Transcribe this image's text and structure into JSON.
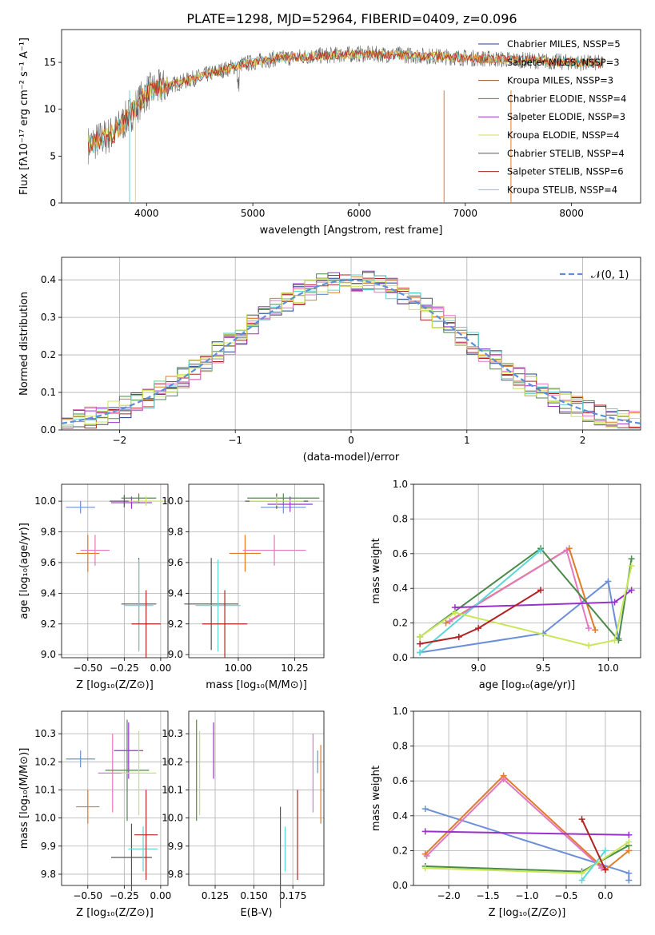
{
  "title": "PLATE=1298, MJD=52964, FIBERID=0409, z=0.096",
  "colors": [
    "#1f3f8f",
    "#e07b2a",
    "#a0522d",
    "#4a8a4a",
    "#9932cc",
    "#d4e157",
    "#555555",
    "#b22222",
    "#5dd6d6",
    "#6a8fd8",
    "#f08080",
    "#c8e65a",
    "#e377c2"
  ],
  "chart_data": [
    {
      "type": "line",
      "name": "spectrum",
      "xlabel": "wavelength [Angstrom, rest frame]",
      "ylabel": "Flux [fλ10⁻¹⁷ erg cm⁻² s⁻¹ A⁻¹]",
      "xlim": [
        3200,
        8650
      ],
      "ylim": [
        0,
        18.5
      ],
      "xticks": [
        "4000",
        "5000",
        "6000",
        "7000",
        "8000"
      ],
      "yticks": [
        "0",
        "5",
        "10",
        "15"
      ],
      "legend_placement": "top-right",
      "series": [
        {
          "name": "Chabrier MILES, N_SSP=5"
        },
        {
          "name": "Salpeter MILES, N_SSP=3"
        },
        {
          "name": "Kroupa MILES, N_SSP=3"
        },
        {
          "name": "Chabrier ELODIE, N_SSP=4"
        },
        {
          "name": "Salpeter ELODIE, N_SSP=3"
        },
        {
          "name": "Kroupa ELODIE, N_SSP=4"
        },
        {
          "name": "Chabrier STELIB, N_SSP=4"
        },
        {
          "name": "Salpeter STELIB, N_SSP=6"
        },
        {
          "name": "Kroupa STELIB, N_SSP=4"
        }
      ],
      "continuum": {
        "x": [
          3450,
          3700,
          3850,
          4000,
          4300,
          4600,
          4900,
          5200,
          5600,
          6000,
          6400,
          6800,
          7200,
          7600,
          8000,
          8300
        ],
        "y": [
          6.2,
          7.5,
          9.5,
          11.8,
          12.8,
          13.8,
          14.8,
          15.4,
          15.7,
          15.9,
          15.8,
          15.6,
          15.4,
          15.2,
          15.0,
          14.9
        ]
      }
    },
    {
      "type": "bar",
      "name": "residual-histogram",
      "xlabel": "(data-model)/error",
      "ylabel": "Normed distribution",
      "xlim": [
        -2.5,
        2.5
      ],
      "ylim": [
        0,
        0.46
      ],
      "xticks": [
        "−2",
        "−1",
        "0",
        "1",
        "2"
      ],
      "yticks": [
        "0.0",
        "0.1",
        "0.2",
        "0.3",
        "0.4"
      ],
      "legend": "𝒩(0, 1)",
      "legend_placement": "top-right",
      "grid": true
    },
    {
      "type": "scatter",
      "name": "age-vs-Z",
      "xlabel": "Z [log₁₀(Z/Z⊙)]",
      "ylabel": "age  [log₁₀(age/yr)]",
      "xlim": [
        -0.68,
        0.05
      ],
      "ylim": [
        8.98,
        10.11
      ],
      "xticks": [
        "−0.50",
        "−0.25",
        "0.00"
      ],
      "yticks": [
        "9.0",
        "9.2",
        "9.4",
        "9.6",
        "9.8",
        "10.0"
      ],
      "grid": true,
      "points": [
        {
          "x": -0.55,
          "y": 9.96,
          "xerr": 0.1,
          "yerr": 0.04,
          "c": 9
        },
        {
          "x": -0.5,
          "y": 9.66,
          "xerr": 0.08,
          "yerr": 0.12,
          "c": 1
        },
        {
          "x": -0.45,
          "y": 9.68,
          "xerr": 0.1,
          "yerr": 0.1,
          "c": 12
        },
        {
          "x": -0.25,
          "y": 10.0,
          "xerr": 0.1,
          "yerr": 0.04,
          "c": 6
        },
        {
          "x": -0.2,
          "y": 9.99,
          "xerr": 0.14,
          "yerr": 0.04,
          "c": 4
        },
        {
          "x": -0.15,
          "y": 10.02,
          "xerr": 0.12,
          "yerr": 0.03,
          "c": 3
        },
        {
          "x": -0.1,
          "y": 10.0,
          "xerr": 0.12,
          "yerr": 0.03,
          "c": 11
        },
        {
          "x": -0.15,
          "y": 9.33,
          "xerr": 0.12,
          "yerr": 0.3,
          "c": 6
        },
        {
          "x": -0.15,
          "y": 9.32,
          "xerr": 0.1,
          "yerr": 0.3,
          "c": 8
        },
        {
          "x": -0.1,
          "y": 9.2,
          "xerr": 0.1,
          "yerr": 0.22,
          "c": 7
        }
      ]
    },
    {
      "type": "scatter",
      "name": "age-vs-mass",
      "xlabel": "mass [log₁₀(M/M⊙)]",
      "ylabel": "",
      "xlim": [
        9.78,
        10.38
      ],
      "ylim": [
        8.98,
        10.11
      ],
      "xticks": [
        "10.00",
        "10.25"
      ],
      "yticks": [
        "9.0",
        "9.2",
        "9.4",
        "9.6",
        "9.8",
        "10.0"
      ],
      "grid": true,
      "points": [
        {
          "x": 10.2,
          "y": 9.96,
          "xerr": 0.1,
          "yerr": 0.04,
          "c": 9
        },
        {
          "x": 10.03,
          "y": 9.66,
          "xerr": 0.07,
          "yerr": 0.12,
          "c": 1
        },
        {
          "x": 10.16,
          "y": 9.68,
          "xerr": 0.14,
          "yerr": 0.1,
          "c": 12
        },
        {
          "x": 10.17,
          "y": 10.0,
          "xerr": 0.14,
          "yerr": 0.05,
          "c": 6
        },
        {
          "x": 10.23,
          "y": 9.98,
          "xerr": 0.1,
          "yerr": 0.05,
          "c": 4
        },
        {
          "x": 10.2,
          "y": 10.02,
          "xerr": 0.16,
          "yerr": 0.03,
          "c": 3
        },
        {
          "x": 10.17,
          "y": 10.0,
          "xerr": 0.12,
          "yerr": 0.03,
          "c": 11
        },
        {
          "x": 9.88,
          "y": 9.33,
          "xerr": 0.12,
          "yerr": 0.3,
          "c": 6
        },
        {
          "x": 9.91,
          "y": 9.32,
          "xerr": 0.1,
          "yerr": 0.3,
          "c": 8
        },
        {
          "x": 9.94,
          "y": 9.2,
          "xerr": 0.1,
          "yerr": 0.22,
          "c": 7
        }
      ]
    },
    {
      "type": "line",
      "name": "mass-weight-vs-age",
      "xlabel": "age  [log₁₀(age/yr)]",
      "ylabel": "mass weight",
      "xlim": [
        8.5,
        10.25
      ],
      "ylim": [
        0,
        1.0
      ],
      "xticks": [
        "9.0",
        "9.5",
        "10.0"
      ],
      "yticks": [
        "0.0",
        "0.2",
        "0.4",
        "0.6",
        "0.8",
        "1.0"
      ],
      "grid": true,
      "series": [
        {
          "c": 9,
          "x": [
            8.55,
            9.5,
            10.0,
            10.08
          ],
          "y": [
            0.03,
            0.14,
            0.44,
            0.11
          ]
        },
        {
          "c": 1,
          "x": [
            8.75,
            9.7,
            9.9
          ],
          "y": [
            0.2,
            0.63,
            0.16
          ]
        },
        {
          "c": 12,
          "x": [
            8.78,
            9.68,
            9.85
          ],
          "y": [
            0.21,
            0.62,
            0.17
          ]
        },
        {
          "c": 3,
          "x": [
            8.55,
            9.48,
            10.08,
            10.18
          ],
          "y": [
            0.12,
            0.63,
            0.1,
            0.57
          ]
        },
        {
          "c": 8,
          "x": [
            8.55,
            9.48
          ],
          "y": [
            0.03,
            0.62
          ]
        },
        {
          "c": 4,
          "x": [
            8.82,
            10.05,
            10.18
          ],
          "y": [
            0.29,
            0.32,
            0.39
          ]
        },
        {
          "c": 11,
          "x": [
            8.55,
            8.82,
            9.85,
            10.05,
            10.18
          ],
          "y": [
            0.12,
            0.26,
            0.07,
            0.1,
            0.53
          ]
        },
        {
          "c": 7,
          "x": [
            8.55,
            8.85,
            9.0,
            9.48
          ],
          "y": [
            0.08,
            0.12,
            0.17,
            0.39
          ]
        }
      ]
    },
    {
      "type": "scatter",
      "name": "mass-vs-Z",
      "xlabel": "Z [log₁₀(Z/Z⊙)]",
      "ylabel": "mass [log₁₀(M/M⊙)]",
      "xlim": [
        -0.68,
        0.05
      ],
      "ylim": [
        9.76,
        10.38
      ],
      "xticks": [
        "−0.50",
        "−0.25",
        "0.00"
      ],
      "yticks": [
        "9.8",
        "9.9",
        "10.0",
        "10.1",
        "10.2",
        "10.3"
      ],
      "grid": true,
      "points": [
        {
          "x": -0.55,
          "y": 10.21,
          "xerr": 0.1,
          "yerr": 0.03,
          "c": 9
        },
        {
          "x": -0.5,
          "y": 10.04,
          "xerr": 0.08,
          "yerr": 0.06,
          "c": 1
        },
        {
          "x": -0.33,
          "y": 10.16,
          "xerr": 0.1,
          "yerr": 0.14,
          "c": 12
        },
        {
          "x": -0.22,
          "y": 10.24,
          "xerr": 0.1,
          "yerr": 0.1,
          "c": 4
        },
        {
          "x": -0.23,
          "y": 10.17,
          "xerr": 0.15,
          "yerr": 0.18,
          "c": 3
        },
        {
          "x": -0.15,
          "y": 10.16,
          "xerr": 0.12,
          "yerr": 0.15,
          "c": 11
        },
        {
          "x": -0.2,
          "y": 9.86,
          "xerr": 0.14,
          "yerr": 0.12,
          "c": 6
        },
        {
          "x": -0.12,
          "y": 9.89,
          "xerr": 0.1,
          "yerr": 0.08,
          "c": 8
        },
        {
          "x": -0.1,
          "y": 9.94,
          "xerr": 0.08,
          "yerr": 0.16,
          "c": 7
        }
      ]
    },
    {
      "type": "scatter",
      "name": "mass-vs-EBV",
      "xlabel": "E(B-V)",
      "ylabel": "",
      "xlim": [
        0.108,
        0.195
      ],
      "ylim": [
        9.76,
        10.38
      ],
      "xticks": [
        "0.125",
        "0.150",
        "0.175"
      ],
      "yticks": [
        "9.8",
        "9.9",
        "10.0",
        "10.1",
        "10.2",
        "10.3"
      ],
      "grid": true,
      "points": [
        {
          "x": 0.113,
          "y": 10.17,
          "yerr": 0.18,
          "c": 3
        },
        {
          "x": 0.115,
          "y": 10.16,
          "yerr": 0.15,
          "c": 11
        },
        {
          "x": 0.124,
          "y": 10.24,
          "yerr": 0.1,
          "c": 4
        },
        {
          "x": 0.167,
          "y": 9.86,
          "yerr": 0.18,
          "c": 6
        },
        {
          "x": 0.17,
          "y": 9.89,
          "yerr": 0.08,
          "c": 8
        },
        {
          "x": 0.178,
          "y": 9.94,
          "yerr": 0.16,
          "c": 7
        },
        {
          "x": 0.188,
          "y": 10.16,
          "yerr": 0.14,
          "c": 12
        },
        {
          "x": 0.193,
          "y": 10.12,
          "yerr": 0.14,
          "c": 1
        },
        {
          "x": 0.191,
          "y": 10.2,
          "yerr": 0.04,
          "c": 9
        }
      ]
    },
    {
      "type": "line",
      "name": "mass-weight-vs-Z",
      "xlabel": "Z [log₁₀(Z/Z⊙)]",
      "ylabel": "mass weight",
      "xlim": [
        -2.45,
        0.45
      ],
      "ylim": [
        0,
        1.0
      ],
      "xticks": [
        "−2.0",
        "−1.5",
        "−1.0",
        "−0.5",
        "0.0"
      ],
      "yticks": [
        "0.0",
        "0.2",
        "0.4",
        "0.6",
        "0.8",
        "1.0"
      ],
      "grid": true,
      "series": [
        {
          "c": 9,
          "x": [
            -2.3,
            0.3,
            0.3
          ],
          "y": [
            0.44,
            0.07,
            0.03
          ]
        },
        {
          "c": 1,
          "x": [
            -2.3,
            -1.3,
            0.0,
            0.3
          ],
          "y": [
            0.18,
            0.63,
            0.09,
            0.2
          ]
        },
        {
          "c": 12,
          "x": [
            -2.28,
            -1.3,
            -0.05
          ],
          "y": [
            0.17,
            0.61,
            0.1
          ]
        },
        {
          "c": 4,
          "x": [
            -2.3,
            0.3
          ],
          "y": [
            0.31,
            0.29
          ]
        },
        {
          "c": 3,
          "x": [
            -2.3,
            -0.3,
            0.3
          ],
          "y": [
            0.11,
            0.08,
            0.23
          ]
        },
        {
          "c": 11,
          "x": [
            -2.3,
            -0.3,
            0.3
          ],
          "y": [
            0.1,
            0.07,
            0.25
          ]
        },
        {
          "c": 8,
          "x": [
            -0.3,
            0.0
          ],
          "y": [
            0.03,
            0.2
          ]
        },
        {
          "c": 7,
          "x": [
            -0.3,
            0.0
          ],
          "y": [
            0.38,
            0.09
          ]
        }
      ]
    }
  ]
}
